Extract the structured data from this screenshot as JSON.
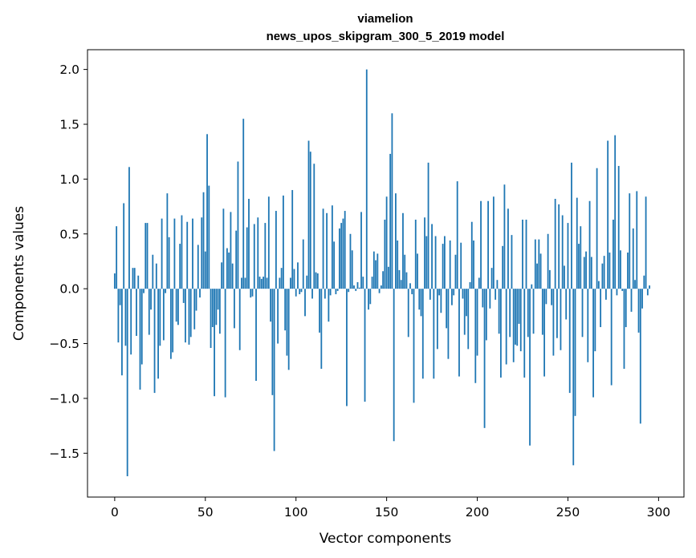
{
  "chart_data": {
    "type": "bar",
    "title": "viamelion",
    "subtitle": "news_upos_skipgram_300_5_2019 model",
    "xlabel": "Vector components",
    "ylabel": "Components values",
    "xlim": [
      -15,
      314
    ],
    "ylim": [
      -1.9,
      2.18
    ],
    "xticks": [
      0,
      50,
      100,
      150,
      200,
      250,
      300
    ],
    "yticks": [
      -1.5,
      -1.0,
      -0.5,
      0.0,
      0.5,
      1.0,
      1.5,
      2.0
    ],
    "ytick_labels": [
      "−1.5",
      "−1.0",
      "−0.5",
      "0.0",
      "0.5",
      "1.0",
      "1.5",
      "2.0"
    ],
    "grid": false,
    "bar_color": "#1f77b4",
    "x_start": 0,
    "values": [
      0.14,
      0.57,
      -0.49,
      -0.15,
      -0.79,
      0.78,
      -0.52,
      -1.71,
      1.11,
      -0.6,
      0.19,
      0.19,
      -0.43,
      0.12,
      -0.92,
      -0.69,
      -0.04,
      0.6,
      0.6,
      -0.42,
      -0.19,
      0.31,
      -0.95,
      0.23,
      -0.82,
      -0.52,
      0.64,
      -0.47,
      -0.04,
      0.87,
      0.47,
      -0.64,
      -0.58,
      0.64,
      -0.3,
      -0.33,
      0.41,
      0.67,
      -0.13,
      -0.49,
      0.61,
      -0.51,
      -0.44,
      0.64,
      -0.37,
      -0.2,
      0.4,
      -0.08,
      0.65,
      0.88,
      0.34,
      1.41,
      0.94,
      -0.54,
      -0.35,
      -0.98,
      -0.33,
      -0.19,
      -0.41,
      0.24,
      0.73,
      -0.99,
      0.37,
      0.33,
      0.7,
      0.23,
      -0.36,
      0.53,
      1.16,
      -0.56,
      0.1,
      1.55,
      0.1,
      0.56,
      0.82,
      -0.08,
      -0.07,
      0.59,
      -0.84,
      0.65,
      0.11,
      0.09,
      0.11,
      0.6,
      0.1,
      0.84,
      -0.3,
      -0.97,
      -1.48,
      0.71,
      -0.5,
      0.1,
      0.19,
      0.85,
      -0.38,
      -0.61,
      -0.74,
      0.1,
      0.9,
      0.18,
      -0.07,
      0.24,
      -0.05,
      -0.03,
      0.45,
      -0.25,
      0.12,
      1.35,
      1.25,
      -0.09,
      1.14,
      0.15,
      0.14,
      -0.4,
      -0.73,
      0.73,
      -0.09,
      0.69,
      -0.3,
      -0.06,
      0.76,
      0.43,
      -0.05,
      -0.02,
      0.55,
      0.6,
      0.64,
      0.71,
      -1.07,
      -0.03,
      0.5,
      0.35,
      0.03,
      -0.02,
      0.06,
      0.01,
      0.7,
      0.11,
      -1.03,
      2.0,
      -0.19,
      -0.14,
      0.11,
      0.34,
      0.26,
      0.32,
      -0.04,
      0.03,
      0.16,
      0.63,
      0.84,
      0.2,
      1.23,
      1.6,
      -1.39,
      0.87,
      0.44,
      0.17,
      0.08,
      0.69,
      0.31,
      0.15,
      -0.44,
      0.05,
      -0.05,
      -1.04,
      0.63,
      0.32,
      -0.19,
      -0.25,
      -0.82,
      0.65,
      0.48,
      1.15,
      -0.1,
      0.59,
      -0.82,
      0.48,
      -0.55,
      -0.06,
      -0.22,
      0.41,
      0.48,
      -0.36,
      -0.64,
      0.44,
      -0.15,
      -0.06,
      0.31,
      0.98,
      -0.8,
      0.42,
      -0.09,
      -0.42,
      -0.25,
      -0.55,
      0.06,
      0.61,
      0.44,
      -0.86,
      -0.61,
      0.1,
      0.8,
      -0.17,
      -1.27,
      -0.47,
      0.8,
      -0.18,
      0.19,
      0.84,
      -0.1,
      0.08,
      -0.41,
      -0.81,
      0.39,
      0.95,
      -0.69,
      0.73,
      -0.44,
      0.49,
      -0.67,
      -0.51,
      -0.52,
      -0.32,
      -0.57,
      0.63,
      -0.81,
      0.63,
      -0.44,
      -1.43,
      0.04,
      -0.41,
      0.45,
      0.23,
      0.45,
      0.32,
      -0.42,
      -0.8,
      -0.14,
      0.5,
      0.17,
      -0.15,
      -0.61,
      0.82,
      -0.45,
      0.77,
      -0.56,
      0.67,
      0.21,
      -0.28,
      0.6,
      -0.95,
      1.15,
      -1.61,
      -1.16,
      0.83,
      0.41,
      0.57,
      -0.44,
      0.29,
      0.34,
      -0.67,
      0.8,
      0.29,
      -0.99,
      -0.57,
      1.1,
      0.07,
      -0.35,
      0.23,
      0.3,
      -0.1,
      1.35,
      0.33,
      -0.88,
      0.63,
      1.4,
      -0.06,
      1.12,
      0.35,
      -0.02,
      -0.73,
      -0.35,
      0.33,
      0.87,
      -0.21,
      0.55,
      0.08,
      0.89,
      -0.4,
      -1.23,
      -0.18,
      0.12,
      0.84,
      -0.06,
      0.03
    ]
  }
}
